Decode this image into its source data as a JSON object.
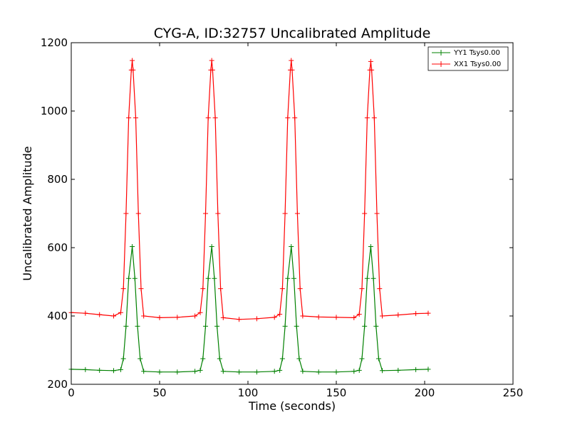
{
  "chart_data": {
    "type": "line",
    "title": "CYG-A, ID:32757 Uncalibrated Amplitude",
    "xlabel": "Time (seconds)",
    "ylabel": "Uncalibrated Amplitude",
    "xlim": [
      0,
      250
    ],
    "ylim": [
      200,
      1200
    ],
    "xticks": [
      "0",
      "50",
      "100",
      "150",
      "200",
      "250"
    ],
    "yticks": [
      "200",
      "400",
      "600",
      "800",
      "1000",
      "1200"
    ],
    "grid": false,
    "legend_position": "top-right",
    "marker": "+",
    "series": [
      {
        "name": "YY1 Tsys0.00",
        "color": "#008000",
        "x": [
          0,
          8,
          16,
          24,
          28,
          29.5,
          31,
          32.5,
          34.5,
          36,
          37.5,
          39,
          41,
          50,
          60,
          70,
          73,
          74.5,
          76,
          77.5,
          79.5,
          81,
          82.5,
          84,
          86,
          95,
          105,
          115,
          118,
          119.5,
          121,
          122.5,
          124.5,
          126,
          127.5,
          129,
          131,
          140,
          150,
          160,
          163,
          164.5,
          166,
          167.5,
          169.5,
          171,
          172.5,
          174,
          176,
          185,
          195,
          202
        ],
        "y": [
          244,
          243,
          241,
          240,
          243,
          275,
          370,
          510,
          603,
          510,
          370,
          275,
          238,
          236,
          236,
          238,
          241,
          275,
          370,
          510,
          603,
          510,
          370,
          275,
          238,
          236,
          236,
          238,
          241,
          275,
          370,
          510,
          603,
          510,
          370,
          275,
          238,
          236,
          236,
          238,
          241,
          275,
          370,
          510,
          603,
          510,
          370,
          275,
          240,
          241,
          243,
          244
        ]
      },
      {
        "name": "XX1 Tsys0.00",
        "color": "#ff0000",
        "x": [
          0,
          8,
          16,
          24,
          28,
          29.5,
          31,
          32.5,
          34,
          34.5,
          35,
          36.5,
          38,
          39.5,
          41,
          50,
          60,
          70,
          73,
          74.5,
          76,
          77.5,
          79,
          79.5,
          80,
          81.5,
          83,
          84.5,
          86,
          95,
          105,
          115,
          118,
          119.5,
          121,
          122.5,
          124,
          124.5,
          125,
          126.5,
          128,
          129.5,
          131,
          140,
          150,
          160,
          163,
          164.5,
          166,
          167.5,
          169,
          169.5,
          170,
          171.5,
          173,
          174.5,
          176,
          185,
          195,
          202
        ],
        "y": [
          410,
          408,
          404,
          400,
          410,
          480,
          700,
          980,
          1120,
          1148,
          1120,
          980,
          700,
          480,
          400,
          395,
          396,
          400,
          410,
          480,
          700,
          980,
          1120,
          1148,
          1120,
          980,
          700,
          480,
          395,
          390,
          392,
          396,
          405,
          480,
          700,
          980,
          1120,
          1148,
          1120,
          980,
          700,
          480,
          400,
          397,
          396,
          395,
          405,
          480,
          700,
          980,
          1120,
          1145,
          1120,
          980,
          700,
          480,
          400,
          403,
          407,
          408
        ]
      }
    ]
  }
}
